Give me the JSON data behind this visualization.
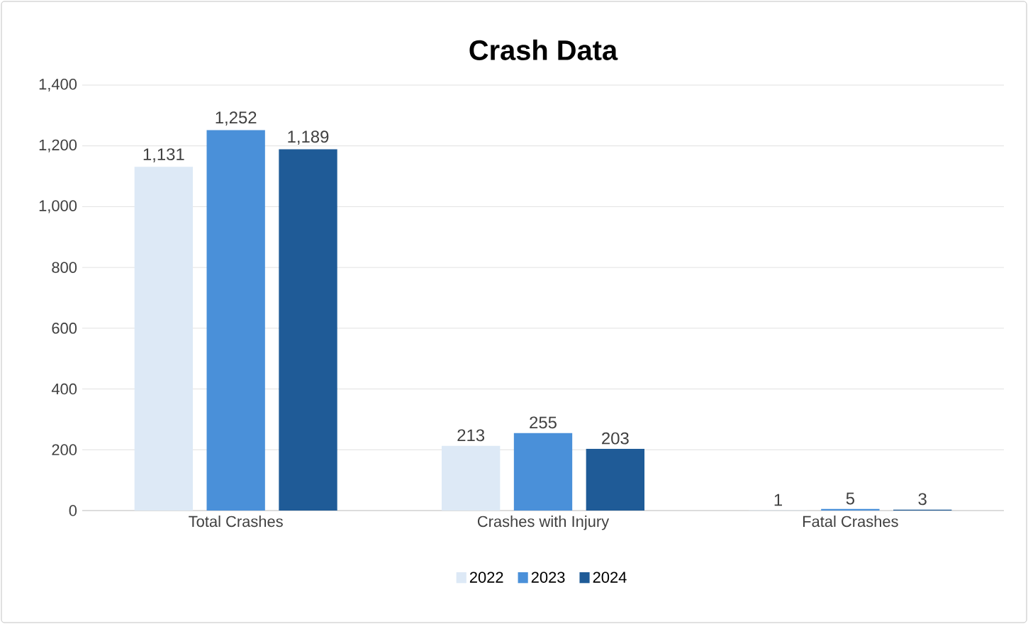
{
  "chart_data": {
    "type": "bar",
    "title": "Crash Data",
    "categories": [
      "Total Crashes",
      "Crashes with Injury",
      "Fatal Crashes"
    ],
    "series": [
      {
        "name": "2022",
        "color": "#dde9f6",
        "values": [
          1131,
          213,
          1
        ],
        "value_labels": [
          "1,131",
          "213",
          "1"
        ]
      },
      {
        "name": "2023",
        "color": "#4a90d9",
        "values": [
          1252,
          255,
          5
        ],
        "value_labels": [
          "1,252",
          "255",
          "5"
        ]
      },
      {
        "name": "2024",
        "color": "#1f5b97",
        "values": [
          1189,
          203,
          3
        ],
        "value_labels": [
          "1,189",
          "203",
          "3"
        ]
      }
    ],
    "ylim": [
      0,
      1400
    ],
    "yticks": [
      0,
      200,
      400,
      600,
      800,
      {
        "value": 1000,
        "label": "1,000"
      },
      {
        "value": 1200,
        "label": "1,200"
      },
      {
        "value": 1400,
        "label": "1,400"
      }
    ],
    "grid": "y",
    "legend": "bottom"
  }
}
